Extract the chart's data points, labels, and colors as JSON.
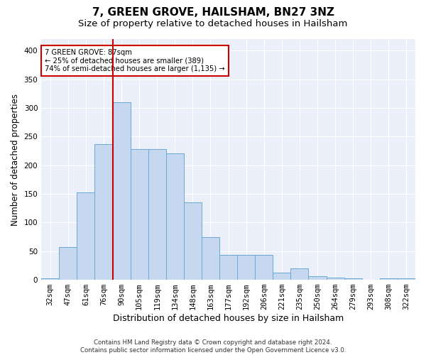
{
  "title1": "7, GREEN GROVE, HAILSHAM, BN27 3NZ",
  "title2": "Size of property relative to detached houses in Hailsham",
  "xlabel": "Distribution of detached houses by size in Hailsham",
  "ylabel": "Number of detached properties",
  "categories": [
    "32sqm",
    "47sqm",
    "61sqm",
    "76sqm",
    "90sqm",
    "105sqm",
    "119sqm",
    "134sqm",
    "148sqm",
    "163sqm",
    "177sqm",
    "192sqm",
    "206sqm",
    "221sqm",
    "235sqm",
    "250sqm",
    "264sqm",
    "279sqm",
    "293sqm",
    "308sqm",
    "322sqm"
  ],
  "values": [
    3,
    57,
    153,
    237,
    310,
    228,
    228,
    220,
    135,
    75,
    43,
    43,
    43,
    13,
    20,
    6,
    4,
    3,
    0,
    3,
    3
  ],
  "bar_color": "#c5d8f0",
  "bar_edge_color": "#6aaad4",
  "background_color": "#eaeff9",
  "grid_color": "#ffffff",
  "vline_x": 3.5,
  "vline_color": "#cc0000",
  "annotation_text": "7 GREEN GROVE: 87sqm\n← 25% of detached houses are smaller (389)\n74% of semi-detached houses are larger (1,135) →",
  "annotation_box_color": "#ffffff",
  "annotation_box_edge": "#cc0000",
  "footnote": "Contains HM Land Registry data © Crown copyright and database right 2024.\nContains public sector information licensed under the Open Government Licence v3.0.",
  "ylim": [
    0,
    420
  ],
  "yticks": [
    0,
    50,
    100,
    150,
    200,
    250,
    300,
    350,
    400
  ],
  "title1_fontsize": 11,
  "title2_fontsize": 9.5,
  "xlabel_fontsize": 9,
  "ylabel_fontsize": 8.5,
  "tick_fontsize": 7.5,
  "footnote_fontsize": 6.2
}
